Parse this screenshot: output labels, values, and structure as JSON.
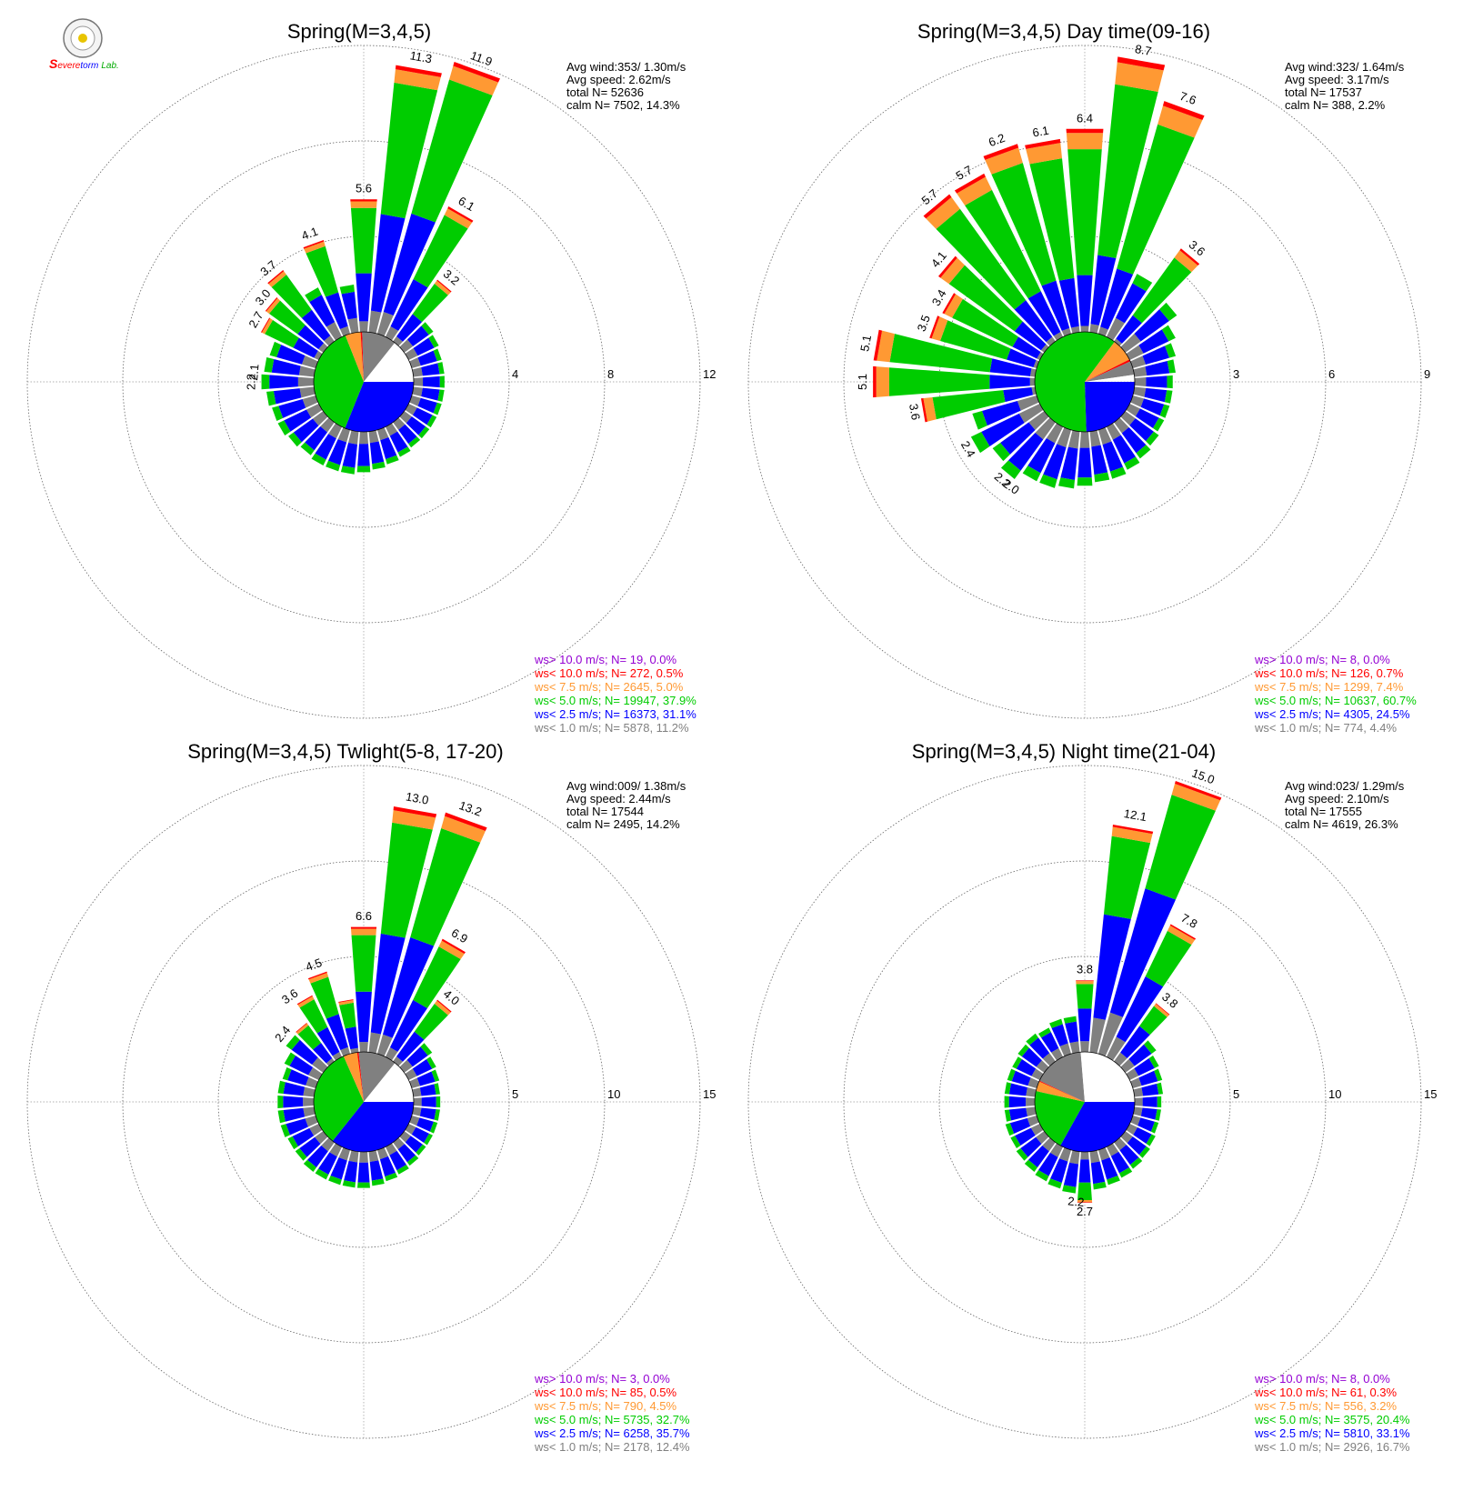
{
  "logo": {
    "text_parts": [
      "S",
      "evere",
      "torm",
      "Lab."
    ]
  },
  "legend_colors": [
    "#9400d3",
    "#ff0000",
    "#ff9933",
    "#00cc00",
    "#0000ff",
    "#808080"
  ],
  "chart_data": [
    {
      "type": "polar-bar",
      "title": "Spring(M=3,4,5)",
      "stats": [
        "Avg wind:353/ 1.30m/s",
        "Avg speed: 2.62m/s",
        "total N=       52636",
        "calm N=   7502,  14.3%"
      ],
      "rmax": 12,
      "rings": [
        4,
        8,
        12
      ],
      "ring_labels": [
        "4",
        "8",
        "12"
      ],
      "bar_labels": [
        {
          "dir": 0,
          "text": "5.6"
        },
        {
          "dir": 10,
          "text": "11.3"
        },
        {
          "dir": 20,
          "text": "11.9"
        },
        {
          "dir": 30,
          "text": "6.1"
        },
        {
          "dir": 40,
          "text": "3.2"
        },
        {
          "dir": 300,
          "text": "2.7"
        },
        {
          "dir": 310,
          "text": "3.0"
        },
        {
          "dir": 320,
          "text": "3.7"
        },
        {
          "dir": 340,
          "text": "4.1"
        },
        {
          "dir": 270,
          "text": "2.2"
        },
        {
          "dir": 275,
          "text": "2.1"
        }
      ],
      "pie": [
        0.311,
        0.379,
        0.05,
        0.005,
        0.112,
        0.143
      ],
      "directions": [
        0,
        10,
        20,
        30,
        40,
        50,
        60,
        70,
        80,
        90,
        100,
        110,
        120,
        130,
        140,
        150,
        160,
        170,
        180,
        190,
        200,
        210,
        220,
        230,
        240,
        250,
        260,
        270,
        280,
        290,
        300,
        310,
        320,
        330,
        340,
        350
      ],
      "values": [
        5.6,
        11.3,
        11.9,
        6.1,
        3.2,
        1.5,
        1.4,
        1.3,
        1.3,
        1.3,
        1.3,
        1.3,
        1.3,
        1.3,
        1.3,
        1.4,
        1.5,
        1.6,
        1.7,
        1.8,
        1.8,
        1.8,
        1.7,
        1.8,
        1.9,
        1.9,
        2.0,
        2.2,
        2.1,
        2.0,
        2.7,
        3.0,
        3.7,
        2.3,
        4.1,
        2.0
      ],
      "fractions": [
        0.08,
        0.36,
        0.49,
        0.05,
        0.015
      ],
      "legend": [
        "ws> 10.0 m/s; N=    19,  0.0%",
        "ws< 10.0 m/s; N=   272,  0.5%",
        "ws<  7.5 m/s; N=  2645,  5.0%",
        "ws<  5.0 m/s; N= 19947, 37.9%",
        "ws<  2.5 m/s; N= 16373, 31.1%",
        "ws<  1.0 m/s; N=  5878, 11.2%"
      ]
    },
    {
      "type": "polar-bar",
      "title": "Spring(M=3,4,5) Day time(09-16)",
      "stats": [
        "Avg wind:323/ 1.64m/s",
        "Avg speed: 3.17m/s",
        "total N=       17537",
        "calm N=    388,   2.2%"
      ],
      "rmax": 9,
      "rings": [
        3,
        6,
        9
      ],
      "ring_labels": [
        "3",
        "6",
        "9"
      ],
      "bar_labels": [
        {
          "dir": 350,
          "text": "6.1"
        },
        {
          "dir": 0,
          "text": "6.4"
        },
        {
          "dir": 10,
          "text": "8.7"
        },
        {
          "dir": 20,
          "text": "7.6"
        },
        {
          "dir": 40,
          "text": "3.6"
        },
        {
          "dir": 340,
          "text": "6.2"
        },
        {
          "dir": 330,
          "text": "5.7"
        },
        {
          "dir": 320,
          "text": "5.7"
        },
        {
          "dir": 310,
          "text": "4.1"
        },
        {
          "dir": 300,
          "text": "3.4"
        },
        {
          "dir": 290,
          "text": "3.5"
        },
        {
          "dir": 280,
          "text": "5.1"
        },
        {
          "dir": 270,
          "text": "5.1"
        },
        {
          "dir": 260,
          "text": "3.6"
        },
        {
          "dir": 240,
          "text": "2.4"
        },
        {
          "dir": 220,
          "text": "2.2"
        },
        {
          "dir": 215,
          "text": "2.0"
        }
      ],
      "pie": [
        0.245,
        0.607,
        0.074,
        0.007,
        0.044,
        0.022
      ],
      "directions": [
        0,
        10,
        20,
        30,
        40,
        50,
        60,
        70,
        80,
        90,
        100,
        110,
        120,
        130,
        140,
        150,
        160,
        170,
        180,
        190,
        200,
        210,
        220,
        230,
        240,
        250,
        260,
        270,
        280,
        290,
        300,
        310,
        320,
        330,
        340,
        350
      ],
      "values": [
        6.4,
        8.7,
        7.6,
        2.2,
        3.6,
        2.0,
        1.6,
        1.4,
        1.3,
        1.2,
        1.2,
        1.2,
        1.2,
        1.3,
        1.4,
        1.5,
        1.6,
        1.6,
        1.7,
        1.8,
        1.9,
        1.9,
        2.2,
        2.0,
        2.4,
        2.1,
        3.6,
        5.1,
        5.1,
        3.5,
        3.4,
        4.1,
        5.7,
        5.7,
        6.2,
        6.1
      ],
      "fractions": [
        0.03,
        0.25,
        0.62,
        0.08,
        0.02
      ],
      "legend": [
        "ws> 10.0 m/s; N=     8,  0.0%",
        "ws< 10.0 m/s; N=   126,  0.7%",
        "ws<  7.5 m/s; N=  1299,  7.4%",
        "ws<  5.0 m/s; N= 10637, 60.7%",
        "ws<  2.5 m/s; N=  4305, 24.5%",
        "ws<  1.0 m/s; N=   774,  4.4%"
      ]
    },
    {
      "type": "polar-bar",
      "title": "Spring(M=3,4,5) Twlight(5-8, 17-20)",
      "stats": [
        "Avg wind:009/ 1.38m/s",
        "Avg speed: 2.44m/s",
        "total N=       17544",
        "calm N=   2495,  14.2%"
      ],
      "rmax": 15,
      "rings": [
        5,
        10,
        15
      ],
      "ring_labels": [
        "5",
        "10",
        "15"
      ],
      "bar_labels": [
        {
          "dir": 0,
          "text": "6.6"
        },
        {
          "dir": 10,
          "text": "13.0"
        },
        {
          "dir": 20,
          "text": "13.2"
        },
        {
          "dir": 30,
          "text": "6.9"
        },
        {
          "dir": 40,
          "text": "4.0"
        },
        {
          "dir": 340,
          "text": "4.5"
        },
        {
          "dir": 325,
          "text": "3.6"
        },
        {
          "dir": 310,
          "text": "2.4"
        }
      ],
      "pie": [
        0.357,
        0.327,
        0.045,
        0.005,
        0.124,
        0.142
      ],
      "directions": [
        0,
        10,
        20,
        30,
        40,
        50,
        60,
        70,
        80,
        90,
        100,
        110,
        120,
        130,
        140,
        150,
        160,
        170,
        180,
        190,
        200,
        210,
        220,
        230,
        240,
        250,
        260,
        270,
        280,
        290,
        300,
        310,
        320,
        330,
        340,
        350
      ],
      "values": [
        6.6,
        13.0,
        13.2,
        6.9,
        4.0,
        1.8,
        1.6,
        1.5,
        1.4,
        1.4,
        1.4,
        1.4,
        1.4,
        1.4,
        1.5,
        1.6,
        1.7,
        1.8,
        1.9,
        1.9,
        1.9,
        1.9,
        1.9,
        1.8,
        1.8,
        1.9,
        1.9,
        1.9,
        1.9,
        1.8,
        2.0,
        2.4,
        2.5,
        3.6,
        4.5,
        2.8
      ],
      "fractions": [
        0.08,
        0.4,
        0.45,
        0.05,
        0.015
      ],
      "legend": [
        "ws> 10.0 m/s; N=     3,  0.0%",
        "ws< 10.0 m/s; N=    85,  0.5%",
        "ws<  7.5 m/s; N=   790,  4.5%",
        "ws<  5.0 m/s; N=  5735, 32.7%",
        "ws<  2.5 m/s; N=  6258, 35.7%",
        "ws<  1.0 m/s; N=  2178, 12.4%"
      ]
    },
    {
      "type": "polar-bar",
      "title": "Spring(M=3,4,5) Night time(21-04)",
      "stats": [
        "Avg wind:023/ 1.29m/s",
        "Avg speed: 2.10m/s",
        "total N=       17555",
        "calm N=   4619,  26.3%"
      ],
      "rmax": 15,
      "rings": [
        5,
        10,
        15
      ],
      "ring_labels": [
        "5",
        "10",
        "15"
      ],
      "bar_labels": [
        {
          "dir": 0,
          "text": "3.8"
        },
        {
          "dir": 10,
          "text": "12.1"
        },
        {
          "dir": 20,
          "text": "15.0"
        },
        {
          "dir": 30,
          "text": "7.8"
        },
        {
          "dir": 40,
          "text": "3.8"
        },
        {
          "dir": 180,
          "text": "2.7"
        },
        {
          "dir": 185,
          "text": "2.2"
        }
      ],
      "pie": [
        0.331,
        0.204,
        0.032,
        0.003,
        0.167,
        0.263
      ],
      "directions": [
        0,
        10,
        20,
        30,
        40,
        50,
        60,
        70,
        80,
        90,
        100,
        110,
        120,
        130,
        140,
        150,
        160,
        170,
        180,
        190,
        200,
        210,
        220,
        230,
        240,
        250,
        260,
        270,
        280,
        290,
        300,
        310,
        320,
        330,
        340,
        350
      ],
      "values": [
        3.8,
        12.1,
        15.0,
        7.8,
        3.8,
        2.0,
        1.7,
        1.6,
        1.5,
        1.4,
        1.4,
        1.4,
        1.5,
        1.6,
        1.7,
        1.8,
        1.9,
        2.0,
        2.7,
        2.2,
        2.1,
        2.0,
        1.9,
        1.8,
        1.7,
        1.7,
        1.6,
        1.6,
        1.6,
        1.6,
        1.6,
        1.7,
        1.8,
        1.7,
        1.9,
        1.9
      ],
      "fractions": [
        0.15,
        0.45,
        0.34,
        0.04,
        0.01
      ],
      "legend": [
        "ws> 10.0 m/s; N=     8,  0.0%",
        "ws< 10.0 m/s; N=    61,  0.3%",
        "ws<  7.5 m/s; N=   556,  3.2%",
        "ws<  5.0 m/s; N=  3575, 20.4%",
        "ws<  2.5 m/s; N=  5810, 33.1%",
        "ws<  1.0 m/s; N=  2926, 16.7%"
      ]
    }
  ]
}
